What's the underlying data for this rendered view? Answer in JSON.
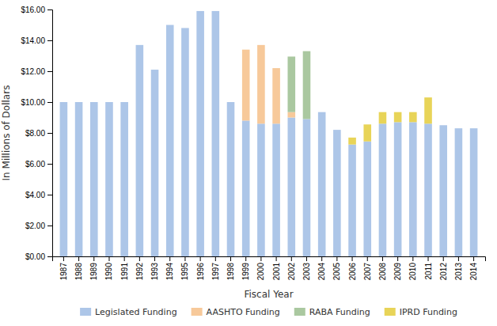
{
  "chart_data": {
    "type": "bar",
    "stacked": true,
    "categories": [
      "1987",
      "1988",
      "1989",
      "1990",
      "1991",
      "1992",
      "1993",
      "1994",
      "1995",
      "1996",
      "1997",
      "1998",
      "1999",
      "2000",
      "2001",
      "2002",
      "2003",
      "2004",
      "2005",
      "2006",
      "2007",
      "2008",
      "2009",
      "2010",
      "2011",
      "2012",
      "2013",
      "2014"
    ],
    "series": [
      {
        "name": "Legislated Funding",
        "color": "#adc6e8",
        "values": [
          10.0,
          10.0,
          10.0,
          10.0,
          10.0,
          13.7,
          12.1,
          15.0,
          14.8,
          15.9,
          15.9,
          10.0,
          8.8,
          8.6,
          8.6,
          9.0,
          8.9,
          9.35,
          8.2,
          7.25,
          7.45,
          8.6,
          8.7,
          8.7,
          8.6,
          8.5,
          8.3,
          8.3
        ]
      },
      {
        "name": "AASHTO Funding",
        "color": "#f7c99a",
        "values": [
          0.0,
          0.0,
          0.0,
          0.0,
          0.0,
          0.0,
          0.0,
          0.0,
          0.0,
          0.0,
          0.0,
          0.0,
          4.6,
          5.1,
          3.6,
          0.35,
          0.0,
          0.0,
          0.0,
          0.0,
          0.0,
          0.0,
          0.0,
          0.0,
          0.0,
          0.0,
          0.0,
          0.0
        ]
      },
      {
        "name": "RABA Funding",
        "color": "#aac8a0",
        "values": [
          0.0,
          0.0,
          0.0,
          0.0,
          0.0,
          0.0,
          0.0,
          0.0,
          0.0,
          0.0,
          0.0,
          0.0,
          0.0,
          0.0,
          0.0,
          3.6,
          4.4,
          0.0,
          0.0,
          0.0,
          0.0,
          0.0,
          0.0,
          0.0,
          0.0,
          0.0,
          0.0,
          0.0
        ]
      },
      {
        "name": "IPRD Funding",
        "color": "#e8d458",
        "values": [
          0.0,
          0.0,
          0.0,
          0.0,
          0.0,
          0.0,
          0.0,
          0.0,
          0.0,
          0.0,
          0.0,
          0.0,
          0.0,
          0.0,
          0.0,
          0.0,
          0.0,
          0.0,
          0.0,
          0.45,
          1.1,
          0.75,
          0.65,
          0.65,
          1.7,
          0.0,
          0.0,
          0.0
        ]
      }
    ],
    "xlabel": "Fiscal Year",
    "ylabel": "In Millions of Dollars",
    "ylim": [
      0,
      16.0
    ],
    "yticks": [
      {
        "value": 0,
        "label": "$0.00"
      },
      {
        "value": 2,
        "label": "$2.00"
      },
      {
        "value": 4,
        "label": "$4.00"
      },
      {
        "value": 6,
        "label": "$6.00"
      },
      {
        "value": 8,
        "label": "$8.00"
      },
      {
        "value": 10,
        "label": "$10.00"
      },
      {
        "value": 12,
        "label": "$12.00"
      },
      {
        "value": 14,
        "label": "$14.00"
      },
      {
        "value": 16,
        "label": "$16.00"
      }
    ],
    "grid": false,
    "legend": "bottom"
  }
}
